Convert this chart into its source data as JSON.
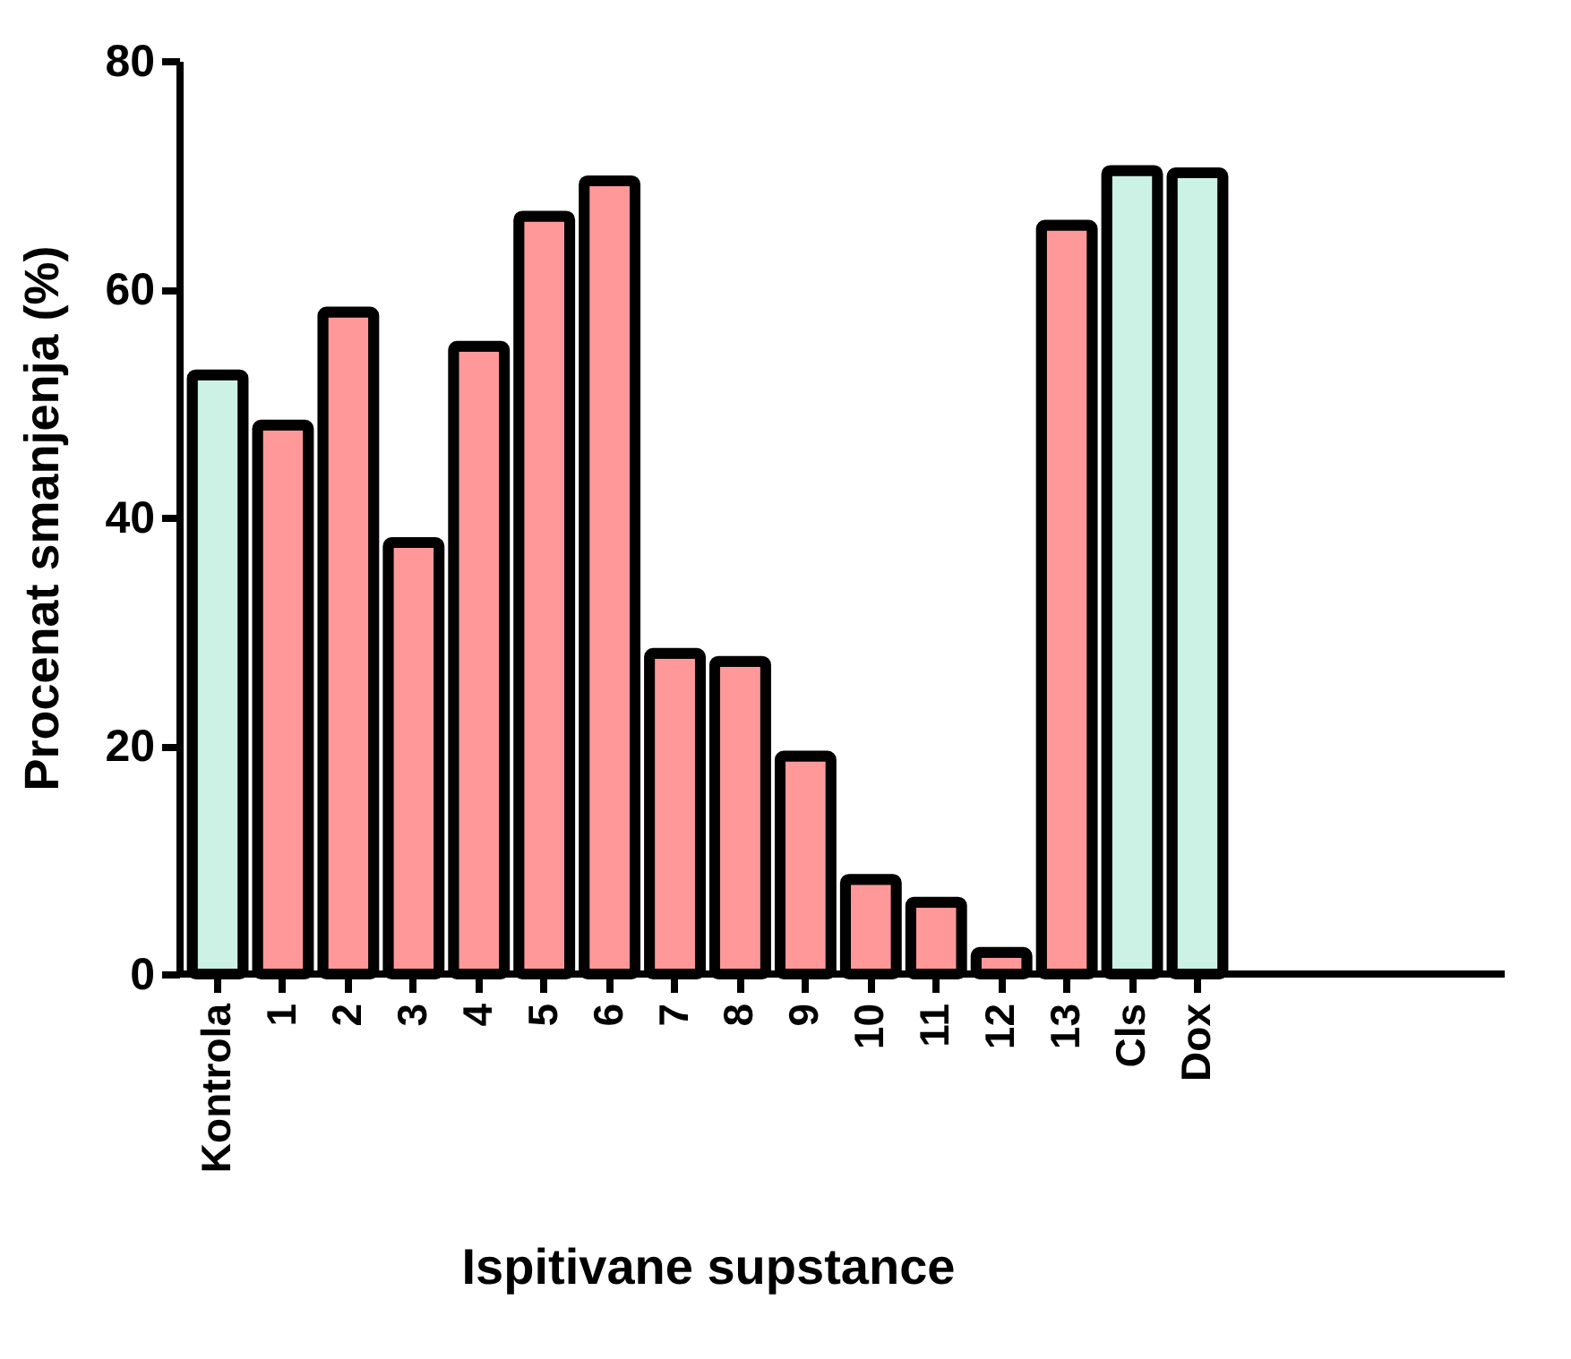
{
  "chart_data": {
    "type": "bar",
    "xlabel": "Ispitivane supstance",
    "ylabel": "Procenat smanjenja (%)",
    "categories": [
      "Kontrola",
      "1",
      "2",
      "3",
      "4",
      "5",
      "6",
      "7",
      "8",
      "9",
      "10",
      "11",
      "12",
      "13",
      "Cls",
      "Dox"
    ],
    "values": [
      52.5,
      48.1,
      58.0,
      37.8,
      55.0,
      66.4,
      69.5,
      28.1,
      27.4,
      19.1,
      8.3,
      6.3,
      1.9,
      65.6,
      70.4,
      70.2
    ],
    "colors": [
      "#ccf2e6",
      "#ff9999",
      "#ff9999",
      "#ff9999",
      "#ff9999",
      "#ff9999",
      "#ff9999",
      "#ff9999",
      "#ff9999",
      "#ff9999",
      "#ff9999",
      "#ff9999",
      "#ff9999",
      "#ff9999",
      "#ccf2e6",
      "#ccf2e6"
    ],
    "ylim": [
      0,
      80
    ],
    "yticks": [
      0,
      20,
      40,
      60,
      80
    ],
    "grid": false
  }
}
